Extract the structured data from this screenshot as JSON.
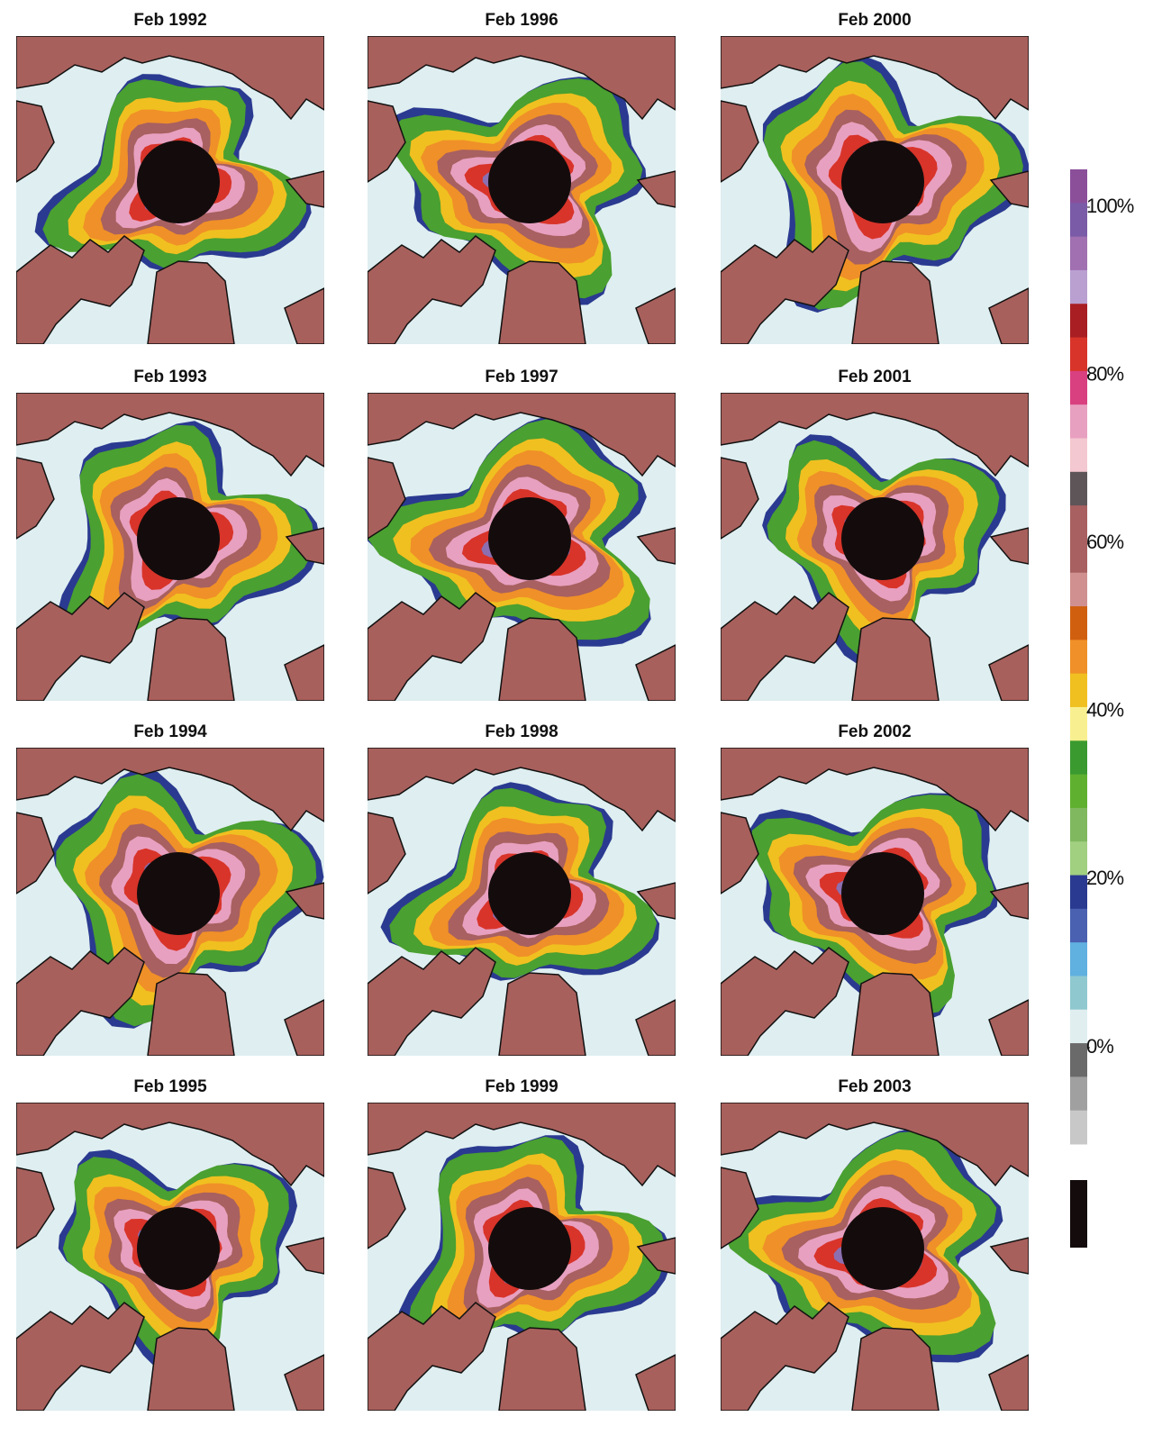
{
  "panels": [
    {
      "title": "Feb 1992"
    },
    {
      "title": "Feb 1993"
    },
    {
      "title": "Feb 1994"
    },
    {
      "title": "Feb 1995"
    },
    {
      "title": "Feb 1996"
    },
    {
      "title": "Feb 1997"
    },
    {
      "title": "Feb 1998"
    },
    {
      "title": "Feb 1999"
    },
    {
      "title": "Feb 2000"
    },
    {
      "title": "Feb 2001"
    },
    {
      "title": "Feb 2002"
    },
    {
      "title": "Feb 2003"
    }
  ],
  "colorbar": {
    "ticks": [
      {
        "value": 100,
        "label": "100%"
      },
      {
        "value": 80,
        "label": "80%"
      },
      {
        "value": 60,
        "label": "60%"
      },
      {
        "value": 40,
        "label": "40%"
      },
      {
        "value": 20,
        "label": "20%"
      },
      {
        "value": 0,
        "label": "0%"
      }
    ],
    "colors": [
      "#8b4f9a",
      "#7a5ba8",
      "#a070b0",
      "#b9a0d0",
      "#a81e22",
      "#d8342a",
      "#d84080",
      "#e8a0c0",
      "#f4c8d0",
      "#5e5558",
      "#a86060",
      "#a86060",
      "#d09090",
      "#d06010",
      "#f09028",
      "#f0c020",
      "#f8f090",
      "#3a9a30",
      "#60b030",
      "#80b860",
      "#a0d080",
      "#2a3a90",
      "#4a60b0",
      "#60b0e0",
      "#90c8d0",
      "#e0eef0",
      "#6a6a6a",
      "#a0a0a0",
      "#c8c8c8"
    ]
  }
}
